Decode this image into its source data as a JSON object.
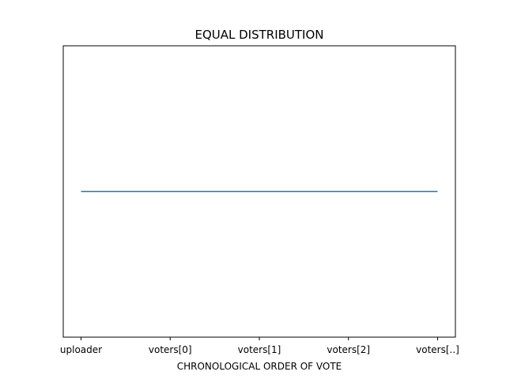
{
  "chart_data": {
    "type": "line",
    "title": "EQUAL DISTRIBUTION",
    "xlabel": "CHRONOLOGICAL ORDER OF VOTE",
    "ylabel": "",
    "categories": [
      "uploader",
      "voters[0]",
      "voters[1]",
      "voters[2]",
      "voters[..]"
    ],
    "series": [
      {
        "values": [
          1,
          1,
          1,
          1,
          1
        ]
      }
    ],
    "ylim": [
      0.945,
      1.055
    ],
    "y_ticks_shown": false,
    "grid": false,
    "line_color": "#1f77b4"
  }
}
